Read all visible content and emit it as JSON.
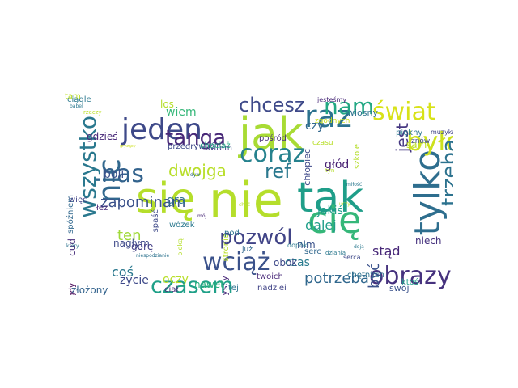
{
  "words": [
    {
      "text": "się",
      "color": "#b5de2b"
    },
    {
      "text": "nie",
      "color": "#b5de2b"
    },
    {
      "text": "tak",
      "color": "#1f9e89"
    },
    {
      "text": "jak",
      "color": "#a8db34"
    },
    {
      "text": "tylko",
      "color": "#2e6e8e"
    },
    {
      "text": "cię",
      "color": "#35b779"
    },
    {
      "text": "nic",
      "color": "#31688e"
    },
    {
      "text": "jeden",
      "color": "#3e4989"
    },
    {
      "text": "raz",
      "color": "#2c728e"
    },
    {
      "text": "coraz",
      "color": "#26828e"
    },
    {
      "text": "było",
      "color": "#cde11d"
    },
    {
      "text": "świat",
      "color": "#d8e219"
    },
    {
      "text": "nam",
      "color": "#22a884"
    },
    {
      "text": "wciąż",
      "color": "#3b528b"
    },
    {
      "text": "pozwól",
      "color": "#414487"
    },
    {
      "text": "nas",
      "color": "#33638d"
    },
    {
      "text": "wszystko",
      "color": "#2a788e"
    },
    {
      "text": "tanga",
      "color": "#482878"
    },
    {
      "text": "chcesz",
      "color": "#3e4989"
    },
    {
      "text": "trzeba",
      "color": "#2c728e"
    },
    {
      "text": "obrazy",
      "color": "#46327e"
    },
    {
      "text": "jest",
      "color": "#453781"
    },
    {
      "text": "czasem",
      "color": "#1fa088"
    },
    {
      "text": "ref",
      "color": "#2a788e"
    },
    {
      "text": "dwojga",
      "color": "#b8de29"
    },
    {
      "text": "zapominam",
      "color": "#3b528b"
    },
    {
      "text": "potrzeba",
      "color": "#31688e"
    },
    {
      "text": "dalej",
      "color": "#1f9e89"
    },
    {
      "text": "jakiś",
      "color": "#1f9e89"
    },
    {
      "text": "być",
      "color": "#3b528b"
    },
    {
      "text": "stąd",
      "color": "#482878"
    },
    {
      "text": "niech",
      "color": "#46327e"
    },
    {
      "text": "ten",
      "color": "#a0da39"
    },
    {
      "text": "coś",
      "color": "#2a788e"
    },
    {
      "text": "boli",
      "color": "#3b528b"
    },
    {
      "text": "cud",
      "color": "#472d7b"
    },
    {
      "text": "gra",
      "color": "#2c728e"
    },
    {
      "text": "los",
      "color": "#b5de2b"
    },
    {
      "text": "wiem",
      "color": "#35b779"
    },
    {
      "text": "głód",
      "color": "#482173"
    },
    {
      "text": "czy",
      "color": "#31688e"
    },
    {
      "text": "sam",
      "color": "#bddf26"
    },
    {
      "text": "życie",
      "color": "#3e4989"
    },
    {
      "text": "czas",
      "color": "#297b8e"
    },
    {
      "text": "gdy",
      "color": "#440154"
    },
    {
      "text": "obraz",
      "color": "#31688e"
    },
    {
      "text": "ciągle",
      "color": "#2a788e"
    },
    {
      "text": "spóźniem",
      "color": "#31688e"
    },
    {
      "text": "gdzieś",
      "color": "#482878"
    },
    {
      "text": "złożony",
      "color": "#33638d"
    },
    {
      "text": "oczy",
      "color": "#b8de29"
    },
    {
      "text": "nawet",
      "color": "#2ab07f"
    },
    {
      "text": "tej",
      "color": "#2c728e"
    },
    {
      "text": "obok",
      "color": "#3e4989"
    },
    {
      "text": "wszyscy",
      "color": "#482878"
    },
    {
      "text": "nim",
      "color": "#3b528b"
    },
    {
      "text": "przegrywać",
      "color": "#3e4989"
    },
    {
      "text": "świtem",
      "color": "#414487"
    },
    {
      "text": "chociaż",
      "color": "#22a884"
    },
    {
      "text": "pośród",
      "color": "#472d7b"
    },
    {
      "text": "wiosny",
      "color": "#2c728e"
    },
    {
      "text": "piękny",
      "color": "#2a788e"
    },
    {
      "text": "znów",
      "color": "#3e4989"
    },
    {
      "text": "warg",
      "color": "#2a788e"
    },
    {
      "text": "swój",
      "color": "#3b528b"
    },
    {
      "text": "ktoś",
      "color": "#1f9e89"
    },
    {
      "text": "nadziei",
      "color": "#414487"
    },
    {
      "text": "twoich",
      "color": "#482878"
    },
    {
      "text": "chętnych",
      "color": "#2c728e"
    },
    {
      "text": "serc",
      "color": "#31688e"
    },
    {
      "text": "łez",
      "color": "#482878"
    },
    {
      "text": "więc",
      "color": "#414487"
    },
    {
      "text": "nagłym",
      "color": "#3e4989"
    },
    {
      "text": "górę",
      "color": "#433e85"
    },
    {
      "text": "spaść",
      "color": "#3e4989"
    },
    {
      "text": "wózek",
      "color": "#2a788e"
    },
    {
      "text": "ciał",
      "color": "#482878"
    },
    {
      "text": "stronie",
      "color": "#b8de29"
    },
    {
      "text": "pod",
      "color": "#2c728e"
    },
    {
      "text": "już",
      "color": "#31688e"
    },
    {
      "text": "dopóki",
      "color": "#2a788e"
    },
    {
      "text": "chłopiec",
      "color": "#3e4989"
    },
    {
      "text": "szkole",
      "color": "#b5de2b"
    },
    {
      "text": "zgodnych",
      "color": "#cde11d"
    },
    {
      "text": "czasu",
      "color": "#b8de29"
    },
    {
      "text": "muzyka",
      "color": "#414487"
    },
    {
      "text": "jesteśmy",
      "color": "#482878"
    },
    {
      "text": "rzeczy",
      "color": "#bddf26"
    },
    {
      "text": "babel",
      "color": "#2a788e"
    },
    {
      "text": "który",
      "color": "#2c728e"
    },
    {
      "text": "niespodzianie",
      "color": "#2c728e"
    },
    {
      "text": "pieką",
      "color": "#b5de2b"
    },
    {
      "text": "choć",
      "color": "#b5de2b"
    },
    {
      "text": "tyn",
      "color": "#b5de2b"
    },
    {
      "text": "mój",
      "color": "#482878"
    },
    {
      "text": "serca",
      "color": "#3e4989"
    },
    {
      "text": "dziania",
      "color": "#2a788e"
    },
    {
      "text": "uczy",
      "color": "#b5de2b"
    },
    {
      "text": "miłość",
      "color": "#2a788e"
    },
    {
      "text": "dyw",
      "color": "#31688e"
    },
    {
      "text": "doją",
      "color": "#2a788e"
    },
    {
      "text": "gryzący",
      "color": "#cde11d"
    },
    {
      "text": "tam",
      "color": "#bddf26"
    }
  ]
}
